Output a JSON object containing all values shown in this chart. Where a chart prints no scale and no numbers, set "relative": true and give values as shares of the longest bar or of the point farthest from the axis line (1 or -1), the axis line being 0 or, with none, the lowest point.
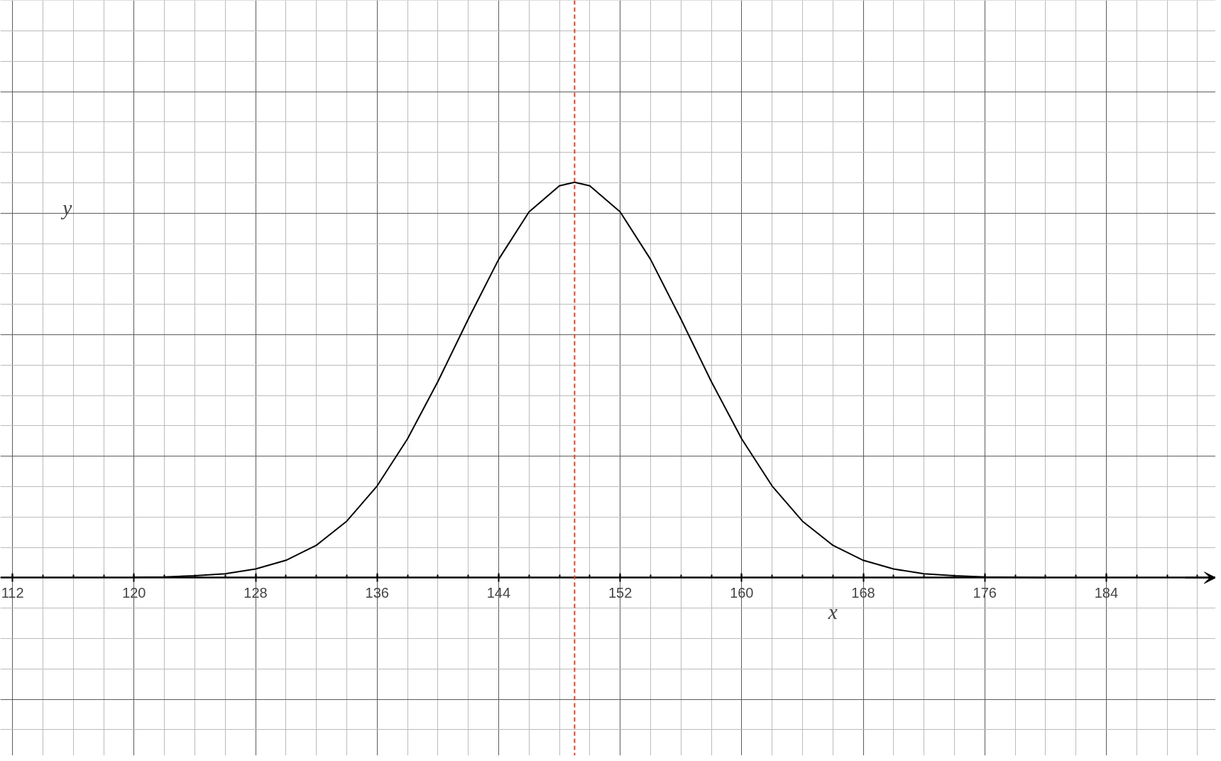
{
  "chart_data": {
    "type": "line",
    "relative": true,
    "xlabel": "x",
    "ylabel": "y",
    "x": [
      120,
      122,
      124,
      126,
      128,
      130,
      132,
      134,
      136,
      138,
      140,
      142,
      144,
      146,
      148,
      149,
      150,
      152,
      154,
      156,
      158,
      160,
      162,
      164,
      166,
      168,
      170,
      172,
      174,
      176,
      178,
      180
    ],
    "series": [
      {
        "color": "#000000",
        "values": [
          0.001,
          0.002,
          0.005,
          0.01,
          0.022,
          0.044,
          0.082,
          0.143,
          0.232,
          0.351,
          0.496,
          0.654,
          0.805,
          0.925,
          0.991,
          1,
          0.991,
          0.925,
          0.805,
          0.654,
          0.496,
          0.351,
          0.232,
          0.143,
          0.082,
          0.044,
          0.022,
          0.01,
          0.005,
          0.002,
          0.001,
          0
        ]
      }
    ],
    "xlim": [
      111.2,
      191.2
    ],
    "xticks": [
      112,
      120,
      128,
      136,
      144,
      152,
      160,
      168,
      176,
      184
    ],
    "ref_lines": [
      {
        "axis": "x",
        "value": 149,
        "color": "#d9452b",
        "line_style": "dashed"
      }
    ],
    "grid": true,
    "marker": "none",
    "line_style": "solid"
  }
}
